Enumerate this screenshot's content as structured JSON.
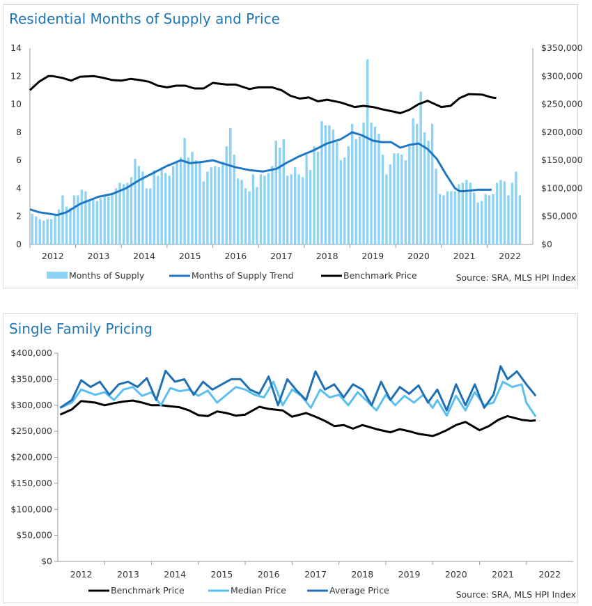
{
  "chart_data": [
    {
      "type": "bar+line",
      "title": "Residential Months of Supply and Price",
      "source": "Source: SRA, MLS HPI Index",
      "y_left_ticks": [
        "0",
        "2",
        "4",
        "6",
        "8",
        "10",
        "12",
        "14"
      ],
      "y_right_ticks": [
        "$0",
        "$50,000",
        "$100,000",
        "$150,000",
        "$200,000",
        "$250,000",
        "$300,000",
        "$350,000"
      ],
      "x_ticks": [
        "2012",
        "2013",
        "2014",
        "2015",
        "2016",
        "2017",
        "2018",
        "2019",
        "2020",
        "2021",
        "2022"
      ],
      "ylim_left": [
        0,
        14
      ],
      "ylim_right": [
        0,
        350000
      ],
      "x_range": [
        2011.5,
        2022.5
      ],
      "grid": false,
      "legend_position": "bottom",
      "series": [
        {
          "name": "Months of Supply",
          "kind": "bar",
          "color": "#8fd3f4",
          "start": 2011.55,
          "step": 0.08333,
          "values": [
            2.2,
            2.0,
            1.8,
            1.7,
            1.8,
            1.8,
            2.1,
            2.5,
            3.5,
            2.7,
            2.6,
            3.5,
            3.5,
            3.9,
            3.8,
            3.1,
            3.2,
            3.1,
            3.3,
            3.5,
            3.4,
            3.7,
            4.0,
            4.4,
            4.3,
            4.4,
            4.8,
            6.1,
            5.6,
            5.2,
            4.0,
            4.0,
            5.3,
            4.9,
            5.5,
            5.1,
            4.9,
            5.6,
            5.9,
            6.2,
            7.6,
            6.2,
            6.6,
            6.0,
            5.9,
            4.5,
            5.2,
            5.5,
            5.6,
            5.5,
            5.9,
            7.0,
            8.3,
            6.4,
            4.7,
            4.6,
            4.0,
            3.8,
            5.0,
            4.1,
            5.0,
            4.9,
            5.1,
            5.6,
            7.4,
            6.9,
            7.5,
            4.9,
            5.0,
            5.5,
            5.0,
            4.8,
            6.4,
            5.3,
            7.0,
            6.6,
            8.8,
            8.5,
            8.5,
            8.2,
            7.3,
            6.0,
            6.2,
            7.0,
            8.6,
            7.5,
            7.7,
            8.7,
            13.2,
            8.7,
            8.4,
            7.9,
            6.4,
            5.0,
            5.7,
            6.5,
            6.5,
            6.4,
            6.0,
            7.0,
            9.0,
            8.6,
            10.9,
            8.0,
            7.4,
            8.6,
            5.4,
            3.6,
            3.5,
            3.8,
            3.8,
            3.8,
            4.3,
            4.4,
            4.6,
            4.4,
            3.7,
            3.0,
            3.1,
            3.6,
            3.5,
            3.6,
            4.4,
            4.6,
            4.5,
            3.5,
            4.4,
            5.2,
            3.5
          ]
        },
        {
          "name": "Months of Supply Trend",
          "kind": "line",
          "axis": "left",
          "color": "#1f77c4",
          "x": [
            2011.5,
            2011.7,
            2011.9,
            2012.1,
            2012.3,
            2012.6,
            2013.0,
            2013.3,
            2013.6,
            2013.9,
            2014.2,
            2014.5,
            2014.8,
            2015.0,
            2015.3,
            2015.5,
            2015.7,
            2016.0,
            2016.3,
            2016.6,
            2016.9,
            2017.1,
            2017.4,
            2017.7,
            2018.0,
            2018.3,
            2018.55,
            2018.75,
            2019.0,
            2019.2,
            2019.4,
            2019.6,
            2019.8,
            2020.0,
            2020.2,
            2020.4,
            2020.6,
            2020.8,
            2020.9,
            2021.0,
            2021.3,
            2021.6
          ],
          "y": [
            2.5,
            2.3,
            2.2,
            2.1,
            2.3,
            2.9,
            3.4,
            3.6,
            4.0,
            4.6,
            5.1,
            5.6,
            6.0,
            5.8,
            5.9,
            6.0,
            5.8,
            5.5,
            5.3,
            5.2,
            5.4,
            5.8,
            6.3,
            6.7,
            7.2,
            7.5,
            8.0,
            7.8,
            7.4,
            7.3,
            7.3,
            6.9,
            7.1,
            7.2,
            6.8,
            6.1,
            5.0,
            4.0,
            3.8,
            3.8,
            3.9,
            3.9
          ]
        },
        {
          "name": "Benchmark Price",
          "kind": "line",
          "axis": "right",
          "color": "#000000",
          "x": [
            2011.5,
            2011.7,
            2011.9,
            2012.0,
            2012.2,
            2012.4,
            2012.6,
            2012.9,
            2013.1,
            2013.3,
            2013.5,
            2013.7,
            2013.9,
            2014.1,
            2014.3,
            2014.5,
            2014.7,
            2014.9,
            2015.1,
            2015.3,
            2015.5,
            2015.8,
            2016.0,
            2016.3,
            2016.5,
            2016.8,
            2017.0,
            2017.2,
            2017.4,
            2017.6,
            2017.8,
            2018.0,
            2018.3,
            2018.6,
            2018.8,
            2019.0,
            2019.2,
            2019.5,
            2019.6,
            2019.8,
            2020.0,
            2020.2,
            2020.5,
            2020.7,
            2020.9,
            2021.1,
            2021.4,
            2021.6,
            2021.7
          ],
          "y": [
            275000,
            290000,
            300000,
            300000,
            297000,
            292000,
            299000,
            300000,
            297000,
            293000,
            292000,
            295000,
            293000,
            290000,
            283000,
            280000,
            283000,
            283000,
            278000,
            278000,
            288000,
            285000,
            285000,
            277000,
            280000,
            280000,
            275000,
            265000,
            260000,
            262000,
            255000,
            258000,
            253000,
            245000,
            247000,
            245000,
            241000,
            236000,
            234000,
            240000,
            250000,
            256000,
            245000,
            247000,
            261000,
            268000,
            267000,
            262000,
            261000
          ]
        }
      ]
    },
    {
      "type": "line",
      "title": "Single Family Pricing",
      "source": "Source: SRA, MLS HPI Index",
      "y_ticks": [
        "$0",
        "$50,000",
        "$100,000",
        "$150,000",
        "$200,000",
        "$250,000",
        "$300,000",
        "$350,000",
        "$400,000"
      ],
      "x_ticks": [
        "2012",
        "2013",
        "2014",
        "2015",
        "2016",
        "2017",
        "2018",
        "2019",
        "2020",
        "2021",
        "2022"
      ],
      "ylim": [
        0,
        400000
      ],
      "x_range": [
        2011.5,
        2022.5
      ],
      "grid": false,
      "legend_position": "bottom",
      "series": [
        {
          "name": "Benchmark Price",
          "color": "#000000",
          "x": [
            2011.55,
            2011.8,
            2012.0,
            2012.3,
            2012.5,
            2012.7,
            2012.9,
            2013.1,
            2013.3,
            2013.5,
            2013.7,
            2013.9,
            2014.1,
            2014.3,
            2014.5,
            2014.7,
            2014.9,
            2015.1,
            2015.3,
            2015.5,
            2015.8,
            2016.0,
            2016.3,
            2016.5,
            2016.8,
            2017.0,
            2017.2,
            2017.4,
            2017.6,
            2017.8,
            2018.0,
            2018.3,
            2018.6,
            2018.8,
            2019.0,
            2019.2,
            2019.5,
            2019.6,
            2019.8,
            2020.0,
            2020.2,
            2020.5,
            2020.7,
            2020.9,
            2021.1,
            2021.4,
            2021.6,
            2021.7
          ],
          "y": [
            282000,
            292000,
            308000,
            305000,
            300000,
            304000,
            307000,
            309000,
            305000,
            300000,
            300000,
            298000,
            296000,
            290000,
            281000,
            279000,
            288000,
            285000,
            280000,
            282000,
            297000,
            293000,
            290000,
            278000,
            285000,
            278000,
            270000,
            260000,
            262000,
            255000,
            262000,
            254000,
            248000,
            254000,
            250000,
            245000,
            241000,
            244000,
            252000,
            262000,
            268000,
            252000,
            260000,
            272000,
            279000,
            272000,
            270000,
            271000
          ]
        },
        {
          "name": "Median Price",
          "color": "#5bc0f0",
          "x": [
            2011.55,
            2011.8,
            2012.0,
            2012.3,
            2012.5,
            2012.7,
            2012.9,
            2013.1,
            2013.3,
            2013.5,
            2013.7,
            2013.9,
            2014.1,
            2014.3,
            2014.5,
            2014.7,
            2014.9,
            2015.1,
            2015.3,
            2015.5,
            2015.7,
            2015.9,
            2016.1,
            2016.3,
            2016.5,
            2016.7,
            2016.9,
            2017.1,
            2017.3,
            2017.5,
            2017.7,
            2017.9,
            2018.1,
            2018.3,
            2018.5,
            2018.7,
            2018.9,
            2019.1,
            2019.3,
            2019.5,
            2019.6,
            2019.8,
            2020.0,
            2020.2,
            2020.4,
            2020.6,
            2020.8,
            2021.0,
            2021.2,
            2021.4,
            2021.5,
            2021.7
          ],
          "y": [
            295000,
            305000,
            330000,
            320000,
            325000,
            310000,
            330000,
            335000,
            318000,
            325000,
            300000,
            333000,
            327000,
            330000,
            318000,
            328000,
            305000,
            320000,
            335000,
            330000,
            320000,
            315000,
            345000,
            300000,
            330000,
            318000,
            295000,
            330000,
            315000,
            320000,
            300000,
            325000,
            308000,
            290000,
            320000,
            300000,
            318000,
            305000,
            320000,
            295000,
            310000,
            280000,
            318000,
            290000,
            325000,
            300000,
            305000,
            345000,
            335000,
            340000,
            305000,
            278000
          ]
        },
        {
          "name": "Average Price",
          "color": "#1f6fb4",
          "x": [
            2011.55,
            2011.8,
            2012.0,
            2012.2,
            2012.4,
            2012.6,
            2012.8,
            2013.0,
            2013.2,
            2013.4,
            2013.6,
            2013.8,
            2014.0,
            2014.2,
            2014.4,
            2014.6,
            2014.8,
            2015.0,
            2015.2,
            2015.4,
            2015.6,
            2015.8,
            2016.0,
            2016.2,
            2016.4,
            2016.6,
            2016.8,
            2017.0,
            2017.2,
            2017.4,
            2017.6,
            2017.8,
            2018.0,
            2018.2,
            2018.4,
            2018.6,
            2018.8,
            2019.0,
            2019.2,
            2019.4,
            2019.6,
            2019.8,
            2020.0,
            2020.2,
            2020.4,
            2020.6,
            2020.8,
            2020.95,
            2021.1,
            2021.3,
            2021.5,
            2021.7
          ],
          "y": [
            295000,
            310000,
            348000,
            335000,
            345000,
            320000,
            340000,
            345000,
            335000,
            352000,
            310000,
            366000,
            345000,
            350000,
            320000,
            345000,
            330000,
            340000,
            350000,
            350000,
            330000,
            322000,
            355000,
            300000,
            350000,
            328000,
            310000,
            365000,
            330000,
            340000,
            315000,
            340000,
            330000,
            300000,
            345000,
            310000,
            335000,
            322000,
            338000,
            305000,
            330000,
            290000,
            340000,
            300000,
            340000,
            295000,
            320000,
            375000,
            350000,
            365000,
            340000,
            318000
          ]
        }
      ]
    }
  ]
}
